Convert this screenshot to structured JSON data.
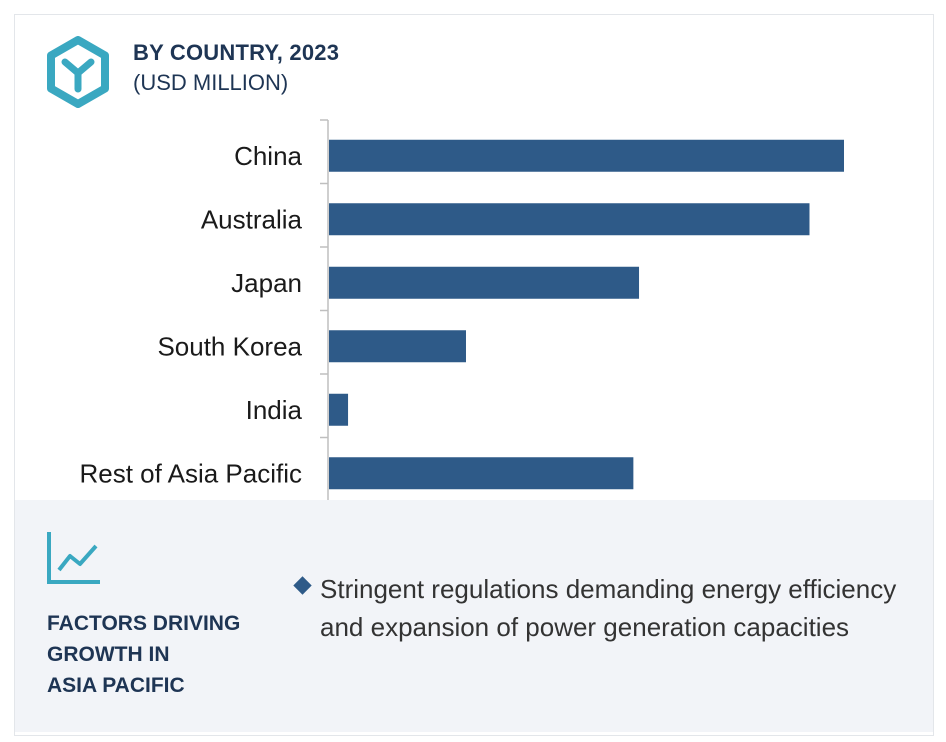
{
  "header": {
    "title": "BY COUNTRY, 2023",
    "subtitle": "(USD MILLION)",
    "icon": "hexagon-y-icon"
  },
  "colors": {
    "bar": "#2e5a88",
    "accent": "#3aa8c1",
    "title": "#1e3554",
    "panel_bg": "#f2f4f8"
  },
  "chart_data": {
    "type": "bar",
    "orientation": "horizontal",
    "title": "BY COUNTRY, 2023",
    "subtitle": "(USD MILLION)",
    "categories": [
      "China",
      "Australia",
      "Japan",
      "South Korea",
      "India",
      "Rest of Asia Pacific"
    ],
    "values": [
      100,
      93.3,
      60.2,
      26.6,
      3.7,
      59.1
    ],
    "xlim": [
      0,
      100
    ],
    "value_axis_shown": false,
    "grid": false,
    "legend": "none"
  },
  "factors": {
    "icon": "trend-line-icon",
    "title_lines": [
      "FACTORS DRIVING",
      "GROWTH IN",
      "ASIA PACIFIC"
    ],
    "bullets": [
      "Stringent regulations demanding energy efficiency and expansion of power generation capacities"
    ]
  }
}
